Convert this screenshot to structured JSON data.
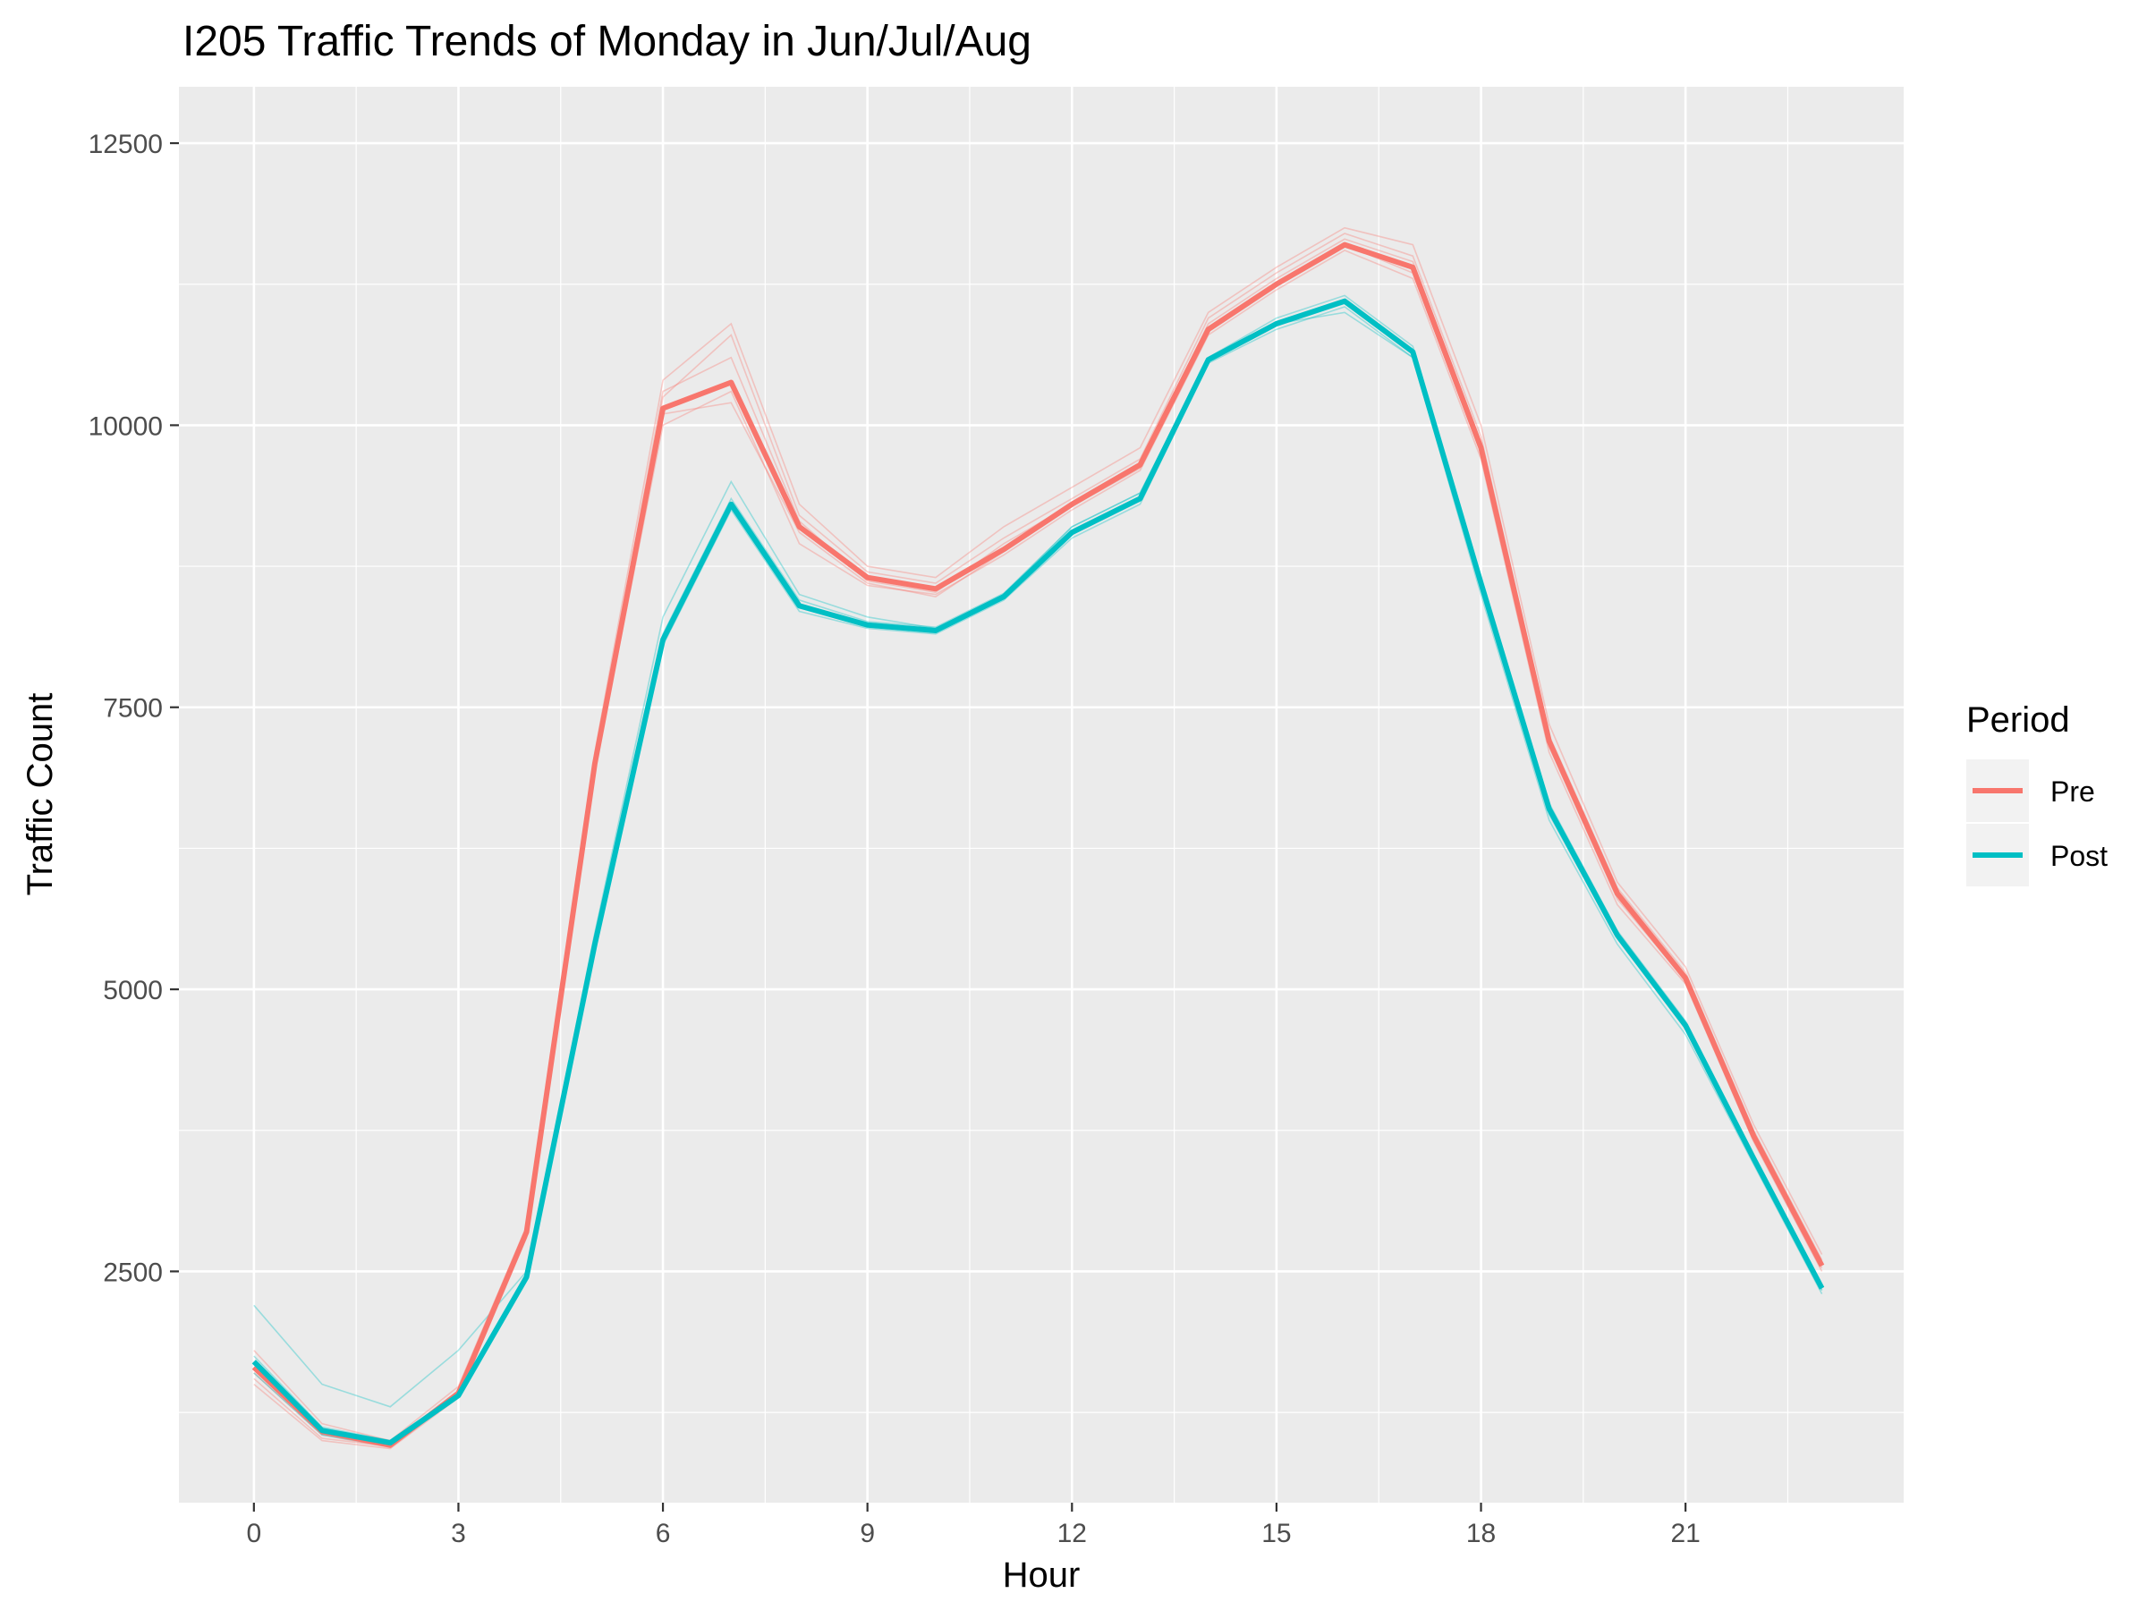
{
  "chart_data": {
    "type": "line",
    "title": "I205 Traffic Trends of Monday in Jun/Jul/Aug",
    "xlabel": "Hour",
    "ylabel": "Traffic Count",
    "xlim": [
      -1.1,
      24.2
    ],
    "ylim": [
      450,
      13000
    ],
    "x_ticks": [
      0,
      3,
      6,
      9,
      12,
      15,
      18,
      21
    ],
    "x_tick_labels": [
      "0",
      "3",
      "6",
      "9",
      "12",
      "15",
      "18",
      "21"
    ],
    "y_ticks": [
      2500,
      5000,
      7500,
      10000,
      12500
    ],
    "y_tick_labels": [
      "2500",
      "5000",
      "7500",
      "10000",
      "12500"
    ],
    "grid": true,
    "legend": {
      "title": "Period",
      "position": "right",
      "entries": [
        {
          "label": "Pre",
          "color": "#F8766D"
        },
        {
          "label": "Post",
          "color": "#00BFC4"
        }
      ]
    },
    "x": [
      0,
      1,
      2,
      3,
      4,
      5,
      6,
      7,
      8,
      9,
      10,
      11,
      12,
      13,
      14,
      15,
      16,
      17,
      18,
      19,
      20,
      21,
      22,
      23
    ],
    "series": [
      {
        "name": "Pre",
        "color": "#F8766D",
        "values": [
          1650,
          1080,
          960,
          1420,
          2850,
          7000,
          10150,
          10380,
          9100,
          8650,
          8550,
          8900,
          9300,
          9650,
          10850,
          11250,
          11600,
          11400,
          9800,
          7200,
          5850,
          5100,
          3700,
          2550
        ]
      },
      {
        "name": "Post",
        "color": "#00BFC4",
        "values": [
          1700,
          1090,
          980,
          1400,
          2450,
          5400,
          8100,
          9300,
          8400,
          8230,
          8180,
          8480,
          9050,
          9350,
          10580,
          10900,
          11100,
          10650,
          8600,
          6600,
          5480,
          4680,
          3500,
          2350
        ]
      }
    ],
    "background_series": {
      "Pre": [
        [
          1500,
          1000,
          930,
          1380,
          2800,
          6950,
          10000,
          10300,
          8950,
          8580,
          8500,
          8850,
          9250,
          9600,
          10800,
          11200,
          11550,
          11300,
          9700,
          7100,
          5750,
          5050,
          3650,
          2500
        ],
        [
          1800,
          1150,
          1000,
          1480,
          2900,
          7100,
          10400,
          10900,
          9300,
          8750,
          8650,
          9100,
          9450,
          9800,
          11000,
          11400,
          11750,
          11600,
          10000,
          7350,
          5950,
          5200,
          3800,
          2650
        ],
        [
          1600,
          1050,
          940,
          1400,
          2850,
          6980,
          10250,
          10800,
          9200,
          8700,
          8600,
          9000,
          9350,
          9700,
          10950,
          11350,
          11700,
          11500,
          9900,
          7250,
          5900,
          5150,
          3750,
          2600
        ],
        [
          1700,
          1100,
          970,
          1430,
          2880,
          7020,
          10300,
          10600,
          9150,
          8620,
          8520,
          8950,
          9300,
          9650,
          10900,
          11300,
          11650,
          11450,
          9850,
          7200,
          5850,
          5100,
          3700,
          2550
        ],
        [
          1550,
          1020,
          950,
          1390,
          2820,
          6960,
          10100,
          10200,
          9050,
          8600,
          8480,
          8880,
          9280,
          9620,
          10850,
          11250,
          11600,
          11350,
          9750,
          7150,
          5800,
          5080,
          3680,
          2530
        ]
      ],
      "Post": [
        [
          1650,
          1060,
          960,
          1380,
          2420,
          5350,
          8050,
          9250,
          8350,
          8200,
          8150,
          8450,
          9000,
          9300,
          10550,
          10850,
          11050,
          10600,
          8550,
          6550,
          5450,
          4650,
          3480,
          2330
        ],
        [
          1750,
          1120,
          1000,
          1420,
          2480,
          5450,
          8150,
          9350,
          8450,
          8260,
          8210,
          8510,
          9100,
          9400,
          10600,
          10950,
          11150,
          10700,
          8650,
          6650,
          5520,
          4720,
          3520,
          2370
        ],
        [
          1700,
          1090,
          980,
          1400,
          2450,
          5400,
          8100,
          9300,
          8400,
          8230,
          8180,
          8480,
          9050,
          9350,
          10580,
          10900,
          11100,
          10650,
          8600,
          6600,
          5480,
          4680,
          3500,
          2350
        ],
        [
          2200,
          1500,
          1300,
          1800,
          2500,
          5500,
          8300,
          9500,
          8500,
          8300,
          8200,
          8500,
          9100,
          9400,
          10600,
          10900,
          11000,
          10600,
          8500,
          6500,
          5400,
          4600,
          3450,
          2300
        ],
        [
          1600,
          1050,
          950,
          1380,
          2430,
          5380,
          8080,
          9280,
          8380,
          8220,
          8170,
          8470,
          9030,
          9330,
          10570,
          10880,
          11080,
          10630,
          8580,
          6580,
          5460,
          4660,
          3490,
          2340
        ]
      ]
    }
  }
}
